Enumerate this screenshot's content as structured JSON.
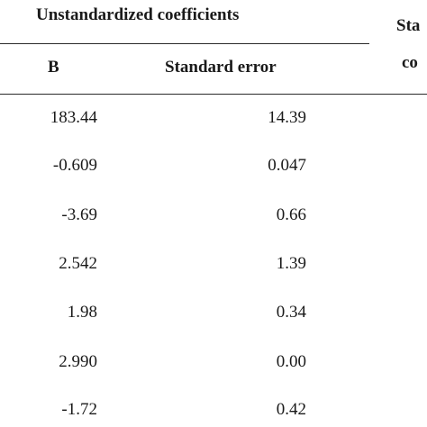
{
  "table": {
    "group_header": "Unstandardized coefficients",
    "cut_header_line1": "Sta",
    "cut_header_line2": "co",
    "columns": [
      "B",
      "Standard error"
    ],
    "rows": [
      {
        "b": "183.44",
        "se": "14.39"
      },
      {
        "b": "-0.609",
        "se": "0.047"
      },
      {
        "b": "-3.69",
        "se": "0.66"
      },
      {
        "b": "2.542",
        "se": "1.39"
      },
      {
        "b": "1.98",
        "se": "0.34"
      },
      {
        "b": "2.990",
        "se": "0.00"
      },
      {
        "b": "-1.72",
        "se": "0.42"
      }
    ]
  }
}
